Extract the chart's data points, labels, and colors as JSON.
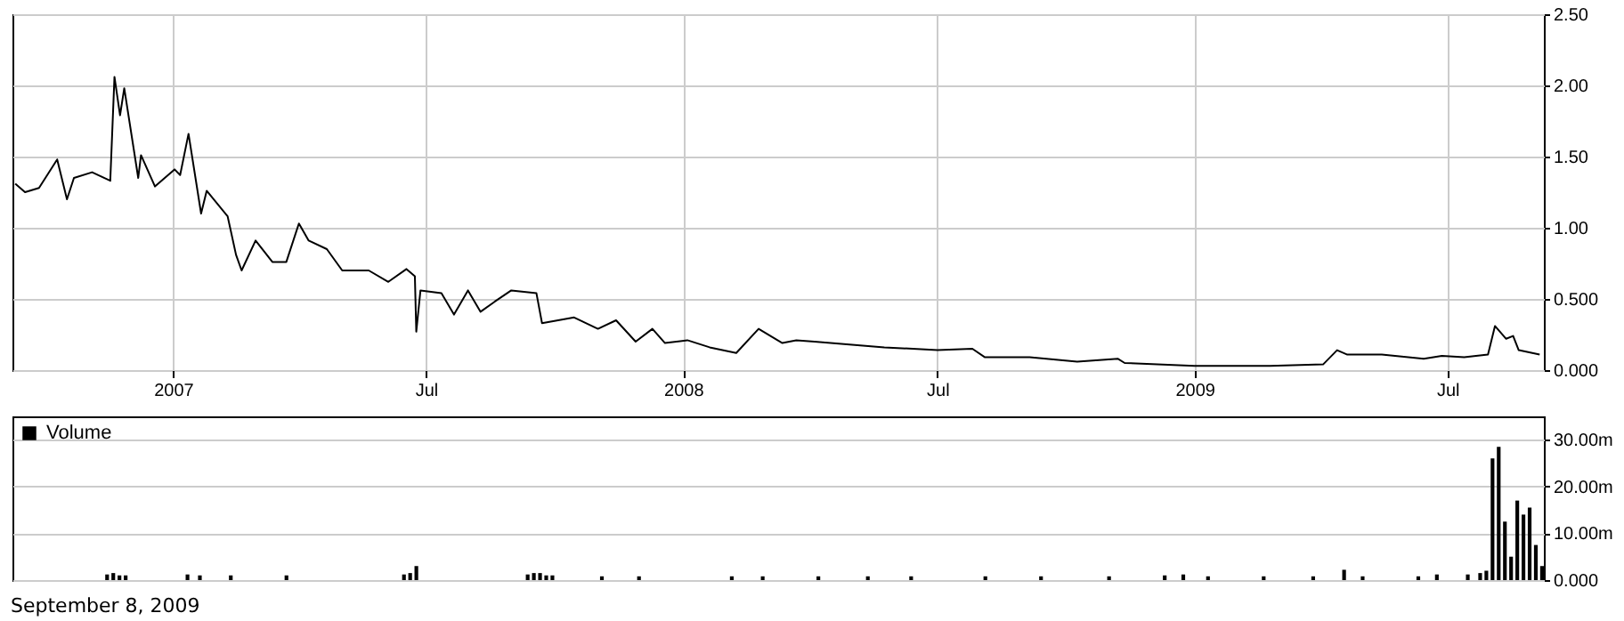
{
  "chart_data": [
    {
      "type": "line",
      "color": "#000000",
      "x": [
        "2006-09-10",
        "2006-09-17",
        "2006-09-27",
        "2006-10-10",
        "2006-10-17",
        "2006-10-22",
        "2006-11-04",
        "2006-11-17",
        "2006-11-20",
        "2006-11-24",
        "2006-11-27",
        "2006-12-07",
        "2006-12-09",
        "2006-12-19",
        "2007-01-02",
        "2007-01-06",
        "2007-01-12",
        "2007-01-21",
        "2007-01-25",
        "2007-02-09",
        "2007-02-15",
        "2007-02-19",
        "2007-03-01",
        "2007-03-13",
        "2007-03-23",
        "2007-04-01",
        "2007-04-08",
        "2007-04-21",
        "2007-05-02",
        "2007-05-21",
        "2007-06-04",
        "2007-06-17",
        "2007-06-23",
        "2007-06-24",
        "2007-06-27",
        "2007-07-12",
        "2007-07-21",
        "2007-07-31",
        "2007-08-09",
        "2007-08-19",
        "2007-08-31",
        "2007-09-18",
        "2007-09-22",
        "2007-10-15",
        "2007-11-01",
        "2007-11-14",
        "2007-11-28",
        "2007-12-10",
        "2007-12-19",
        "2008-01-04",
        "2008-01-20",
        "2008-02-08",
        "2008-02-24",
        "2008-03-12",
        "2008-03-22",
        "2008-04-04",
        "2008-05-24",
        "2008-07-01",
        "2008-07-26",
        "2008-08-04",
        "2008-09-05",
        "2008-10-09",
        "2008-11-07",
        "2008-11-12",
        "2009-01-01",
        "2009-02-24",
        "2009-04-03",
        "2009-04-13",
        "2009-04-20",
        "2009-05-15",
        "2009-06-14",
        "2009-06-27",
        "2009-07-13",
        "2009-07-30",
        "2009-08-04",
        "2009-08-12",
        "2009-08-17",
        "2009-08-21",
        "2009-09-05"
      ],
      "values": [
        1.31,
        1.25,
        1.28,
        1.48,
        1.2,
        1.35,
        1.39,
        1.33,
        2.06,
        1.79,
        1.98,
        1.35,
        1.51,
        1.29,
        1.41,
        1.37,
        1.66,
        1.1,
        1.26,
        1.08,
        0.81,
        0.7,
        0.91,
        0.76,
        0.76,
        1.03,
        0.91,
        0.85,
        0.7,
        0.7,
        0.62,
        0.71,
        0.66,
        0.27,
        0.56,
        0.54,
        0.39,
        0.56,
        0.41,
        0.48,
        0.56,
        0.54,
        0.33,
        0.37,
        0.29,
        0.35,
        0.2,
        0.29,
        0.19,
        0.21,
        0.16,
        0.12,
        0.29,
        0.19,
        0.21,
        0.2,
        0.16,
        0.14,
        0.15,
        0.09,
        0.09,
        0.06,
        0.08,
        0.05,
        0.03,
        0.03,
        0.04,
        0.14,
        0.11,
        0.11,
        0.08,
        0.1,
        0.09,
        0.11,
        0.31,
        0.22,
        0.24,
        0.14,
        0.11
      ],
      "xlim": [
        "2006-09-08",
        "2009-09-08"
      ],
      "xticks": [
        {
          "value": "2007-01-01",
          "label": "2007"
        },
        {
          "value": "2007-07-01",
          "label": "Jul"
        },
        {
          "value": "2008-01-01",
          "label": "2008"
        },
        {
          "value": "2008-07-01",
          "label": "Jul"
        },
        {
          "value": "2009-01-01",
          "label": "2009"
        },
        {
          "value": "2009-07-01",
          "label": "Jul"
        }
      ],
      "ylim": [
        0,
        2.5
      ],
      "yticks": [
        {
          "value": 0,
          "label": "0.000"
        },
        {
          "value": 0.5,
          "label": "0.500"
        },
        {
          "value": 1,
          "label": "1.00"
        },
        {
          "value": 1.5,
          "label": "1.50"
        },
        {
          "value": 2,
          "label": "2.00"
        },
        {
          "value": 2.5,
          "label": "2.50"
        }
      ],
      "grid": true
    },
    {
      "type": "bar",
      "categories": [
        null,
        null,
        null,
        null,
        null,
        null,
        null,
        null,
        null,
        null,
        null,
        null,
        null,
        null,
        null,
        null,
        null,
        null,
        null,
        null,
        null,
        null,
        null,
        null,
        null,
        null,
        null,
        null,
        null,
        null,
        null,
        null,
        null,
        null,
        null,
        null,
        null,
        null,
        null,
        null,
        null,
        null,
        null,
        null,
        null,
        null,
        null,
        null,
        null,
        null,
        null,
        null,
        null,
        null,
        null,
        null,
        null,
        null,
        null,
        null,
        null,
        null,
        null,
        null,
        null,
        null,
        null,
        null,
        null,
        null,
        null,
        null,
        null,
        null,
        null,
        null,
        null,
        null,
        null,
        null,
        null,
        null,
        null,
        null,
        null,
        null,
        null,
        null,
        null,
        null,
        null,
        null,
        null,
        null,
        null,
        null,
        null,
        null,
        null,
        null,
        null,
        null,
        null,
        null,
        null,
        null,
        null,
        null,
        null,
        null,
        null,
        null,
        null,
        null,
        null,
        null,
        null,
        null,
        null,
        null,
        null,
        null,
        null,
        null,
        null,
        null,
        null,
        null,
        null,
        null,
        null,
        null,
        null,
        null,
        null,
        null,
        null,
        null,
        null,
        null,
        null,
        null,
        null,
        null,
        null,
        null,
        null,
        null,
        null,
        null,
        null,
        null,
        null,
        null,
        null,
        null,
        null,
        null,
        null,
        null,
        null,
        null,
        null,
        null,
        null,
        null,
        null,
        null,
        null,
        null,
        null,
        null,
        null,
        null,
        null,
        null,
        null,
        null,
        null,
        null,
        null,
        null,
        null,
        null,
        null,
        null,
        null,
        null,
        null,
        null,
        null,
        null,
        null,
        null,
        null,
        null,
        null,
        null,
        null,
        null,
        null,
        null,
        null,
        null,
        null,
        null,
        null,
        null,
        null,
        null,
        null,
        null,
        null,
        null,
        null,
        null,
        null,
        null,
        null,
        null,
        null,
        null,
        null,
        null,
        null,
        null,
        null,
        null,
        null,
        null,
        null,
        null,
        null,
        null,
        null,
        null,
        null,
        null,
        null,
        null,
        null,
        null,
        null,
        null,
        null,
        null,
        null,
        null
      ],
      "series": [
        {
          "name": "Volume",
          "color": "#000000",
          "values": [
            0,
            0,
            0,
            0,
            0,
            0,
            0,
            0,
            0,
            0,
            0,
            0,
            0,
            0,
            0,
            1.2,
            1.5,
            1,
            1,
            0,
            0,
            0,
            0,
            0,
            0,
            0,
            0,
            0,
            1.2,
            0,
            1,
            0,
            0,
            0,
            0,
            1,
            0,
            0,
            0,
            0,
            0,
            0,
            0,
            0,
            1,
            0,
            0,
            0,
            0,
            0,
            0,
            0,
            0,
            0,
            0,
            0,
            0,
            0,
            0,
            0,
            0,
            0,
            0,
            1.2,
            1.5,
            3,
            0,
            0,
            0,
            0,
            0,
            0,
            0,
            0,
            0,
            0,
            0,
            0,
            0,
            0,
            0,
            0,
            0,
            1.2,
            1.5,
            1.5,
            1,
            1,
            0,
            0,
            0,
            0,
            0,
            0,
            0,
            0.8,
            0,
            0,
            0,
            0,
            0,
            0.8,
            0,
            0,
            0,
            0,
            0,
            0,
            0,
            0,
            0,
            0,
            0,
            0,
            0,
            0,
            0.8,
            0,
            0,
            0,
            0,
            0.8,
            0,
            0,
            0,
            0,
            0,
            0,
            0,
            0,
            0.8,
            0,
            0,
            0,
            0,
            0,
            0,
            0,
            0.8,
            0,
            0,
            0,
            0,
            0,
            0,
            0.8,
            0,
            0,
            0,
            0,
            0,
            0,
            0,
            0,
            0,
            0,
            0,
            0.8,
            0,
            0,
            0,
            0,
            0,
            0,
            0,
            0,
            0.8,
            0,
            0,
            0,
            0,
            0,
            0,
            0,
            0,
            0,
            0,
            0.8,
            0,
            0,
            0,
            0,
            0,
            0,
            0,
            0,
            1,
            0,
            0,
            1.2,
            0,
            0,
            0,
            0.8,
            0,
            0,
            0,
            0,
            0,
            0,
            0,
            0,
            0.8,
            0,
            0,
            0,
            0,
            0,
            0,
            0,
            0.8,
            0,
            0,
            0,
            0,
            2.2,
            0,
            0,
            0.8,
            0,
            0,
            0,
            0,
            0,
            0,
            0,
            0,
            0.8,
            0,
            0,
            1.2,
            0,
            0,
            0,
            0,
            1.2,
            0,
            1.5,
            2,
            26,
            28.5,
            12.5,
            5,
            17,
            14,
            15.5,
            7.5,
            3
          ]
        }
      ],
      "ylim": [
        0,
        35
      ],
      "yticks": [
        {
          "value": 0,
          "label": "0.000"
        },
        {
          "value": 10,
          "label": "10.00m"
        },
        {
          "value": 20,
          "label": "20.00m"
        },
        {
          "value": 30,
          "label": "30.00m"
        }
      ],
      "grid": "y",
      "legend": "top left",
      "tick_labels": "y",
      "annotations": [
        "September 8, 2009"
      ]
    }
  ]
}
